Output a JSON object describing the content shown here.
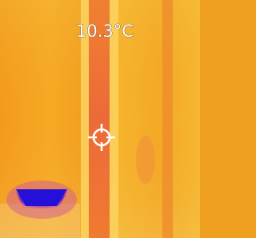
{
  "temperature_reading": "10.3°C"
}
